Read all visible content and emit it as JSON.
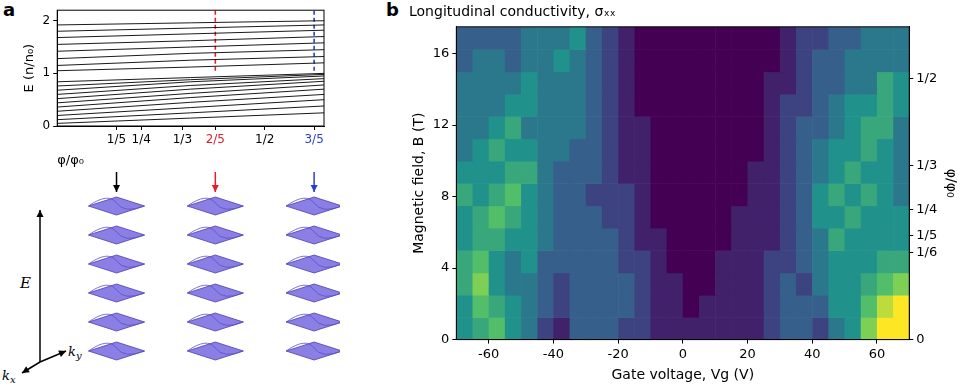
{
  "chart_data": [
    {
      "type": "line",
      "panel_label": "a",
      "ylabel": "E (n/n₀)",
      "xlabel": "φ/φ₀",
      "xlim": [
        0.08,
        0.62
      ],
      "ylim": [
        0,
        2.2
      ],
      "xticks": [
        {
          "value": 0.2,
          "label": "1/5"
        },
        {
          "value": 0.25,
          "label": "1/4"
        },
        {
          "value": 0.3333,
          "label": "1/3"
        },
        {
          "value": 0.4,
          "label": "2/5"
        },
        {
          "value": 0.5,
          "label": "1/2"
        },
        {
          "value": 0.6,
          "label": "3/5"
        }
      ],
      "yticks": [
        0,
        1,
        2
      ],
      "grid": false,
      "color": "#000000",
      "x": [
        0.08,
        0.35,
        0.62
      ],
      "series": [
        {
          "values": [
            0.05,
            0.15,
            0.25
          ]
        },
        {
          "values": [
            0.12,
            0.25,
            0.38
          ]
        },
        {
          "values": [
            0.2,
            0.35,
            0.5
          ]
        },
        {
          "values": [
            0.28,
            0.45,
            0.6
          ]
        },
        {
          "values": [
            0.36,
            0.54,
            0.7
          ]
        },
        {
          "values": [
            0.44,
            0.62,
            0.78
          ]
        },
        {
          "values": [
            0.52,
            0.7,
            0.85
          ]
        },
        {
          "values": [
            0.6,
            0.77,
            0.9
          ]
        },
        {
          "values": [
            0.68,
            0.84,
            0.95
          ]
        },
        {
          "values": [
            0.76,
            0.88,
            0.98
          ]
        },
        {
          "values": [
            0.84,
            0.92,
            1.0
          ]
        },
        {
          "values": [
            1.05,
            1.12,
            1.2
          ]
        },
        {
          "values": [
            1.15,
            1.25,
            1.32
          ]
        },
        {
          "values": [
            1.28,
            1.38,
            1.45
          ]
        },
        {
          "values": [
            1.42,
            1.5,
            1.58
          ]
        },
        {
          "values": [
            1.55,
            1.62,
            1.7
          ]
        },
        {
          "values": [
            1.68,
            1.75,
            1.82
          ]
        },
        {
          "values": [
            1.8,
            1.86,
            1.92
          ]
        },
        {
          "values": [
            1.92,
            1.96,
            2.0
          ]
        }
      ],
      "markers": [
        {
          "x": 0.4,
          "y_range": [
            1.05,
            2.2
          ],
          "color": "#e0202a",
          "line_style": "dashed"
        },
        {
          "x": 0.6,
          "y_range": [
            1.05,
            2.2
          ],
          "color": "#2a3fd0",
          "line_style": "dashed"
        }
      ],
      "band_structures": {
        "at": [
          0.2,
          0.4,
          0.6
        ],
        "colors": [
          "#000000",
          "#e0202a",
          "#2a3fd0"
        ],
        "axis_labels": {
          "energy": "E",
          "kx": [
            "k",
            "x"
          ],
          "ky": [
            "k",
            "y"
          ]
        }
      }
    },
    {
      "type": "heatmap",
      "panel_label": "b",
      "title": "Longitudinal conductivity, σₓₓ",
      "xlabel": "Gate voltage, Vg (V)",
      "ylabel": "Magnetic field, B (T)",
      "y2label": "φ/φ₀",
      "xlim": [
        -70,
        70
      ],
      "ylim": [
        0,
        17.5
      ],
      "y2lim": [
        0,
        0.6
      ],
      "xticks": [
        -60,
        -40,
        -20,
        0,
        20,
        40,
        60
      ],
      "yticks": [
        0,
        4,
        8,
        12,
        16
      ],
      "y2ticks": [
        0,
        {
          "value": 0.1667,
          "label": "1/6"
        },
        {
          "value": 0.2,
          "label": "1/5"
        },
        {
          "value": 0.25,
          "label": "1/4"
        },
        {
          "value": 0.3333,
          "label": "1/3"
        },
        {
          "value": 0.5,
          "label": "1/2"
        }
      ],
      "grid": false,
      "x_bins": [
        -70,
        -65,
        -60,
        -55,
        -50,
        -45,
        -40,
        -35,
        -30,
        -25,
        -20,
        -15,
        -10,
        -5,
        0,
        5,
        10,
        15,
        20,
        25,
        30,
        35,
        40,
        45,
        50,
        55,
        60,
        65,
        70
      ],
      "y_bins": [
        0,
        1.25,
        2.5,
        3.75,
        5,
        6.25,
        7.5,
        8.75,
        10,
        11.25,
        12.5,
        13.75,
        15,
        16.25,
        17.5
      ],
      "color_range": [
        0,
        1
      ],
      "cells": [
        [
          0.5,
          0.6,
          0.7,
          0.5,
          0.4,
          0.2,
          0.1,
          0.3,
          0.3,
          0.3,
          0.2,
          0.2,
          0.1,
          0.1,
          0.1,
          0.1,
          0.1,
          0.1,
          0.1,
          0.2,
          0.3,
          0.3,
          0.2,
          0.4,
          0.5,
          0.8,
          1.0,
          1.0
        ],
        [
          0.5,
          0.7,
          0.6,
          0.5,
          0.4,
          0.3,
          0.2,
          0.3,
          0.3,
          0.3,
          0.3,
          0.2,
          0.1,
          0.1,
          0.0,
          0.1,
          0.1,
          0.1,
          0.1,
          0.2,
          0.3,
          0.3,
          0.3,
          0.5,
          0.5,
          0.7,
          0.9,
          1.0
        ],
        [
          0.6,
          0.8,
          0.5,
          0.4,
          0.4,
          0.3,
          0.2,
          0.3,
          0.3,
          0.3,
          0.3,
          0.2,
          0.1,
          0.1,
          0.0,
          0.0,
          0.1,
          0.1,
          0.1,
          0.2,
          0.3,
          0.2,
          0.4,
          0.5,
          0.5,
          0.6,
          0.7,
          0.8
        ],
        [
          0.6,
          0.7,
          0.5,
          0.4,
          0.5,
          0.3,
          0.3,
          0.3,
          0.3,
          0.3,
          0.2,
          0.2,
          0.1,
          0.0,
          0.0,
          0.0,
          0.1,
          0.1,
          0.1,
          0.2,
          0.2,
          0.3,
          0.4,
          0.5,
          0.5,
          0.5,
          0.6,
          0.6
        ],
        [
          0.5,
          0.6,
          0.6,
          0.5,
          0.5,
          0.4,
          0.3,
          0.3,
          0.3,
          0.3,
          0.2,
          0.1,
          0.1,
          0.0,
          0.0,
          0.0,
          0.0,
          0.1,
          0.1,
          0.1,
          0.2,
          0.3,
          0.4,
          0.6,
          0.5,
          0.5,
          0.5,
          0.5
        ],
        [
          0.5,
          0.6,
          0.7,
          0.6,
          0.5,
          0.4,
          0.3,
          0.3,
          0.3,
          0.2,
          0.2,
          0.1,
          0.0,
          0.0,
          0.0,
          0.0,
          0.0,
          0.1,
          0.1,
          0.1,
          0.2,
          0.3,
          0.5,
          0.5,
          0.6,
          0.5,
          0.5,
          0.5
        ],
        [
          0.6,
          0.5,
          0.6,
          0.7,
          0.5,
          0.4,
          0.3,
          0.3,
          0.2,
          0.2,
          0.2,
          0.1,
          0.0,
          0.0,
          0.0,
          0.0,
          0.0,
          0.0,
          0.1,
          0.1,
          0.2,
          0.3,
          0.5,
          0.6,
          0.5,
          0.6,
          0.5,
          0.4
        ],
        [
          0.5,
          0.5,
          0.5,
          0.6,
          0.6,
          0.4,
          0.3,
          0.3,
          0.3,
          0.2,
          0.1,
          0.1,
          0.0,
          0.0,
          0.0,
          0.0,
          0.0,
          0.0,
          0.1,
          0.1,
          0.2,
          0.3,
          0.4,
          0.5,
          0.6,
          0.5,
          0.5,
          0.4
        ],
        [
          0.4,
          0.5,
          0.6,
          0.5,
          0.5,
          0.4,
          0.4,
          0.3,
          0.3,
          0.2,
          0.1,
          0.1,
          0.0,
          0.0,
          0.0,
          0.0,
          0.0,
          0.0,
          0.0,
          0.1,
          0.2,
          0.3,
          0.4,
          0.5,
          0.5,
          0.6,
          0.5,
          0.4
        ],
        [
          0.4,
          0.4,
          0.5,
          0.6,
          0.4,
          0.4,
          0.4,
          0.4,
          0.3,
          0.2,
          0.1,
          0.1,
          0.0,
          0.0,
          0.0,
          0.0,
          0.0,
          0.0,
          0.0,
          0.1,
          0.2,
          0.3,
          0.3,
          0.4,
          0.5,
          0.6,
          0.6,
          0.4
        ],
        [
          0.4,
          0.4,
          0.4,
          0.5,
          0.5,
          0.4,
          0.4,
          0.4,
          0.3,
          0.2,
          0.1,
          0.0,
          0.0,
          0.0,
          0.0,
          0.0,
          0.0,
          0.0,
          0.0,
          0.1,
          0.2,
          0.2,
          0.3,
          0.4,
          0.5,
          0.5,
          0.6,
          0.5
        ],
        [
          0.4,
          0.4,
          0.4,
          0.4,
          0.5,
          0.4,
          0.4,
          0.4,
          0.3,
          0.2,
          0.1,
          0.0,
          0.0,
          0.0,
          0.0,
          0.0,
          0.0,
          0.0,
          0.0,
          0.1,
          0.1,
          0.2,
          0.3,
          0.3,
          0.4,
          0.4,
          0.6,
          0.5
        ],
        [
          0.3,
          0.4,
          0.4,
          0.3,
          0.4,
          0.4,
          0.5,
          0.4,
          0.3,
          0.2,
          0.1,
          0.0,
          0.0,
          0.0,
          0.0,
          0.0,
          0.0,
          0.0,
          0.0,
          0.0,
          0.1,
          0.2,
          0.3,
          0.3,
          0.4,
          0.4,
          0.4,
          0.4
        ],
        [
          0.3,
          0.3,
          0.3,
          0.3,
          0.4,
          0.4,
          0.4,
          0.5,
          0.3,
          0.2,
          0.1,
          0.0,
          0.0,
          0.0,
          0.0,
          0.0,
          0.0,
          0.0,
          0.0,
          0.0,
          0.1,
          0.2,
          0.2,
          0.3,
          0.3,
          0.4,
          0.4,
          0.4
        ]
      ]
    }
  ]
}
